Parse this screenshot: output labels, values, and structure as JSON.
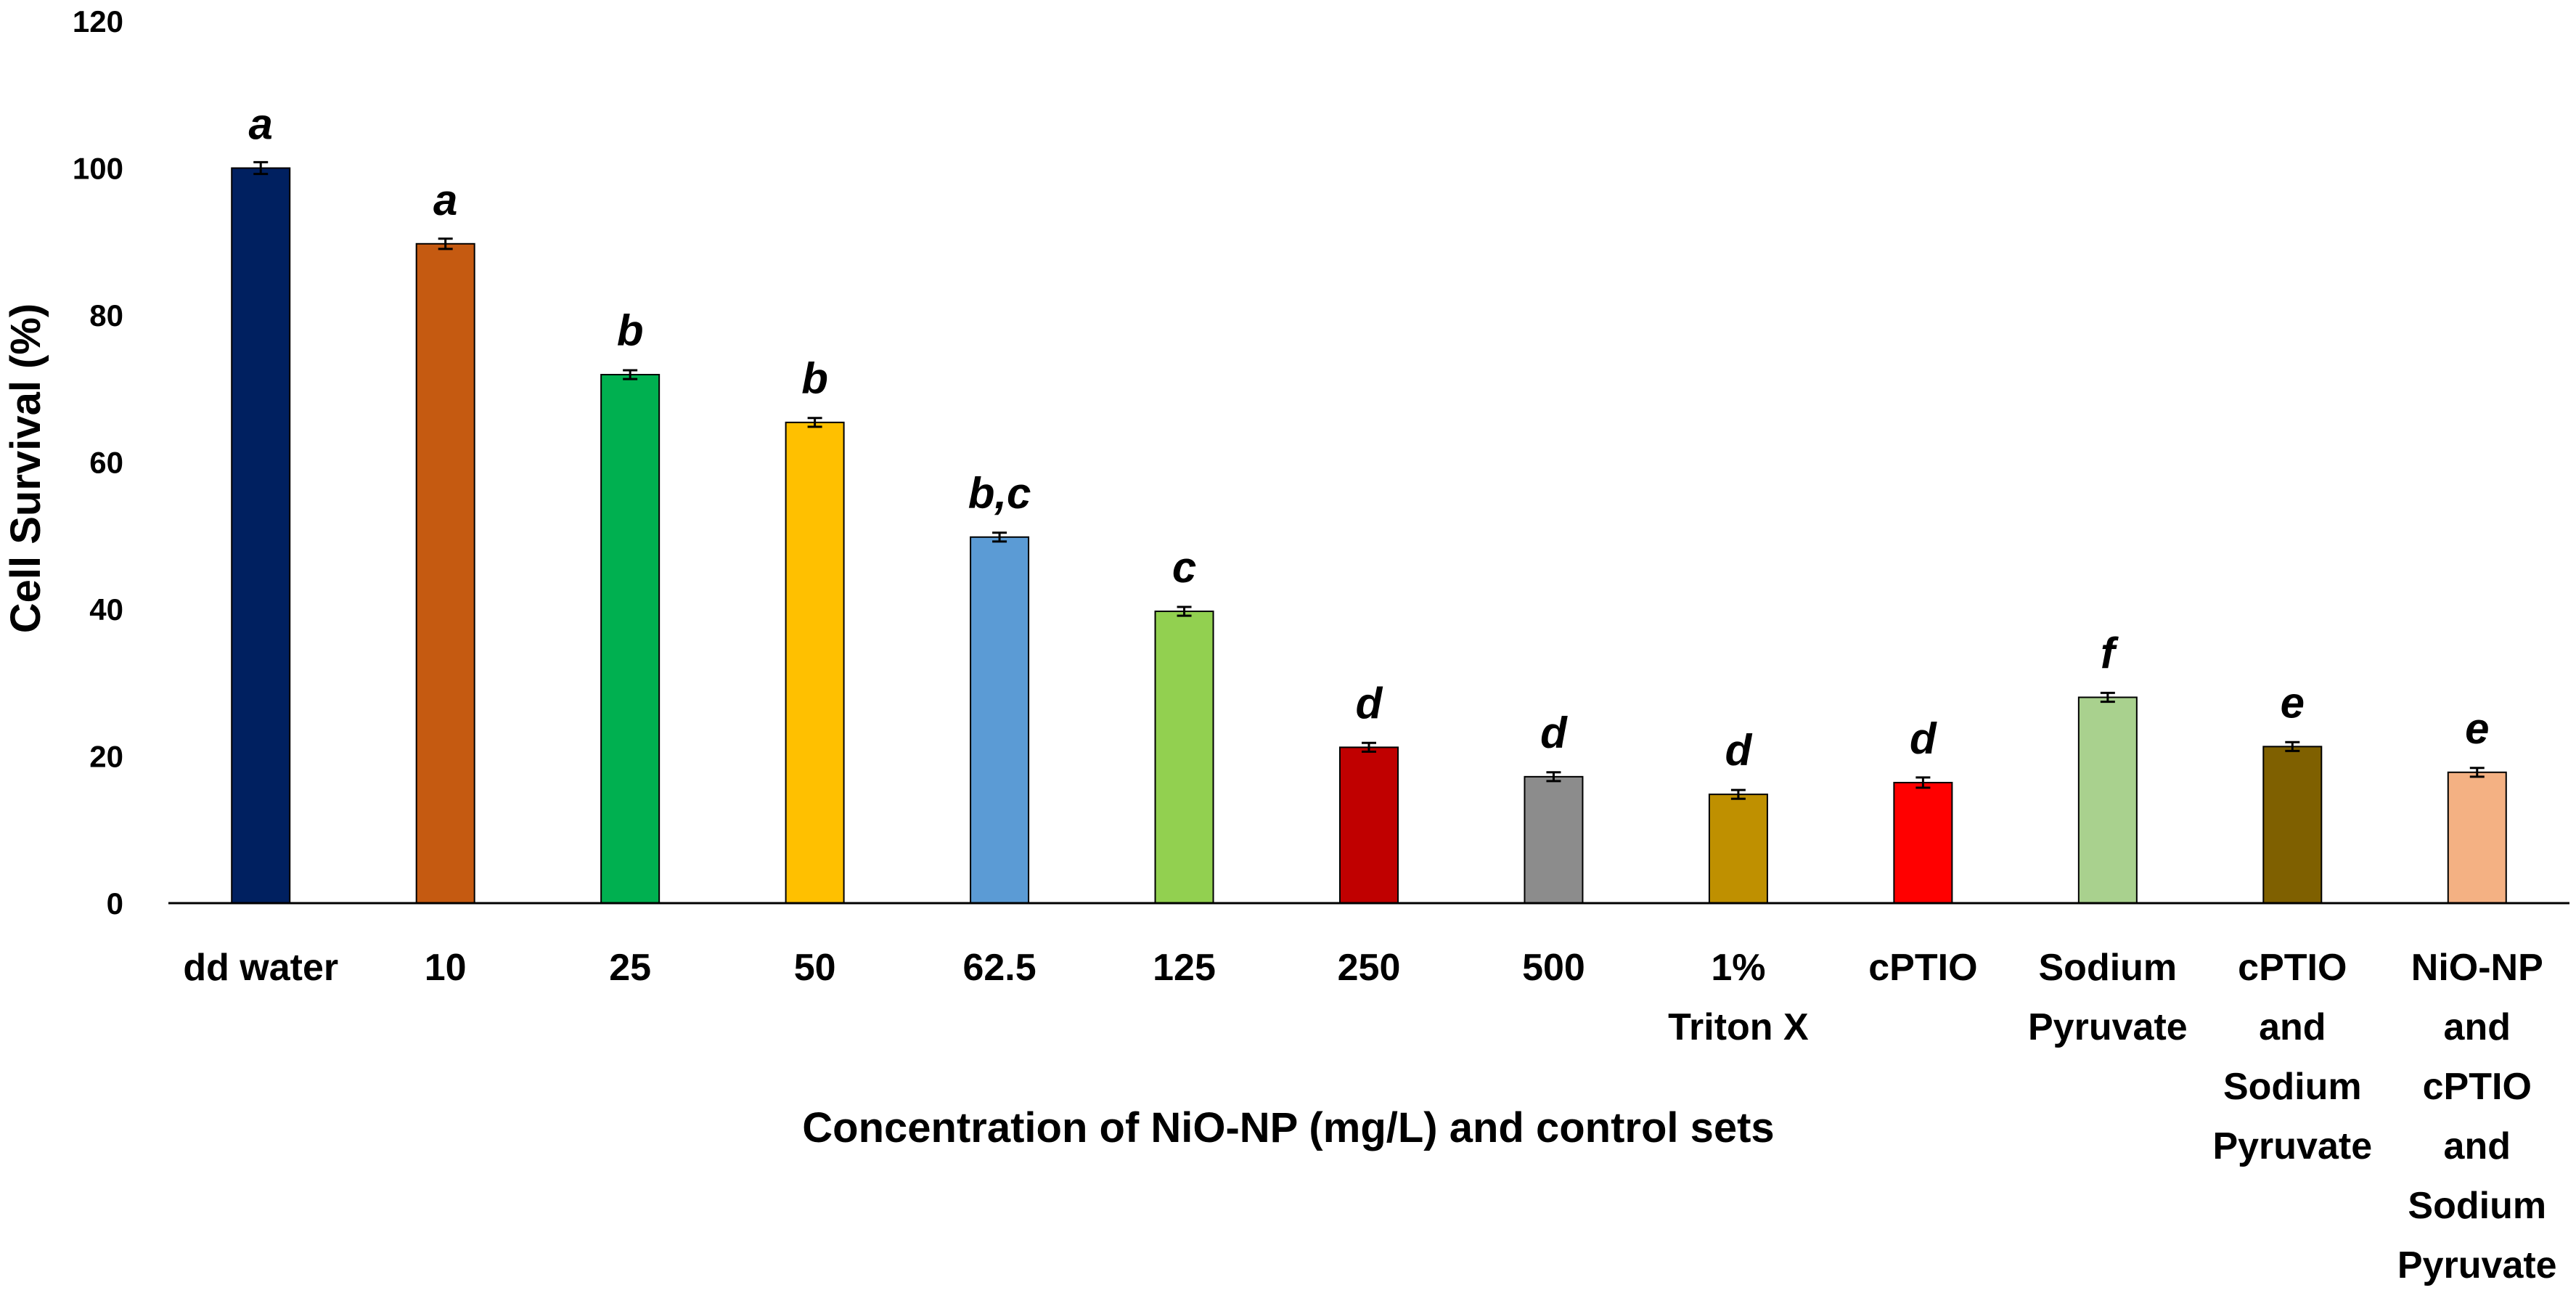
{
  "chart_data": {
    "type": "bar",
    "title": "",
    "xlabel": "Concentration of NiO-NP (mg/L) and control  sets",
    "ylabel": "Cell Survival (%)",
    "ylim": [
      0,
      120
    ],
    "yticks": [
      0,
      20,
      40,
      60,
      80,
      100,
      120
    ],
    "grid": false,
    "legend": "none",
    "categories": [
      [
        "dd water"
      ],
      [
        "10"
      ],
      [
        "25"
      ],
      [
        "50"
      ],
      [
        "62.5"
      ],
      [
        "125"
      ],
      [
        "250"
      ],
      [
        "500"
      ],
      [
        "1%",
        "Triton X"
      ],
      [
        "cPTIO"
      ],
      [
        "Sodium",
        "Pyruvate"
      ],
      [
        "cPTIO",
        "and",
        "Sodium",
        "Pyruvate"
      ],
      [
        "NiO-NP",
        "and",
        "cPTIO",
        "and",
        "Sodium",
        "Pyruvate"
      ]
    ],
    "values": [
      100,
      89.7,
      71.9,
      65.4,
      49.8,
      39.7,
      21.2,
      17.2,
      14.8,
      16.4,
      28.0,
      21.3,
      17.8
    ],
    "errors": [
      0.8,
      0.7,
      0.6,
      0.6,
      0.6,
      0.6,
      0.6,
      0.6,
      0.6,
      0.7,
      0.6,
      0.6,
      0.6
    ],
    "significance": [
      "a",
      "a",
      "b",
      "b",
      "b,c",
      "c",
      "d",
      "d",
      "d",
      "d",
      "f",
      "e",
      "e"
    ],
    "colors": [
      "#002060",
      "#C55A11",
      "#00B050",
      "#FFC000",
      "#5B9BD5",
      "#92D050",
      "#C00000",
      "#8C8C8C",
      "#BF9000",
      "#FF0000",
      "#A9D18E",
      "#7F6000",
      "#F4B183"
    ]
  }
}
